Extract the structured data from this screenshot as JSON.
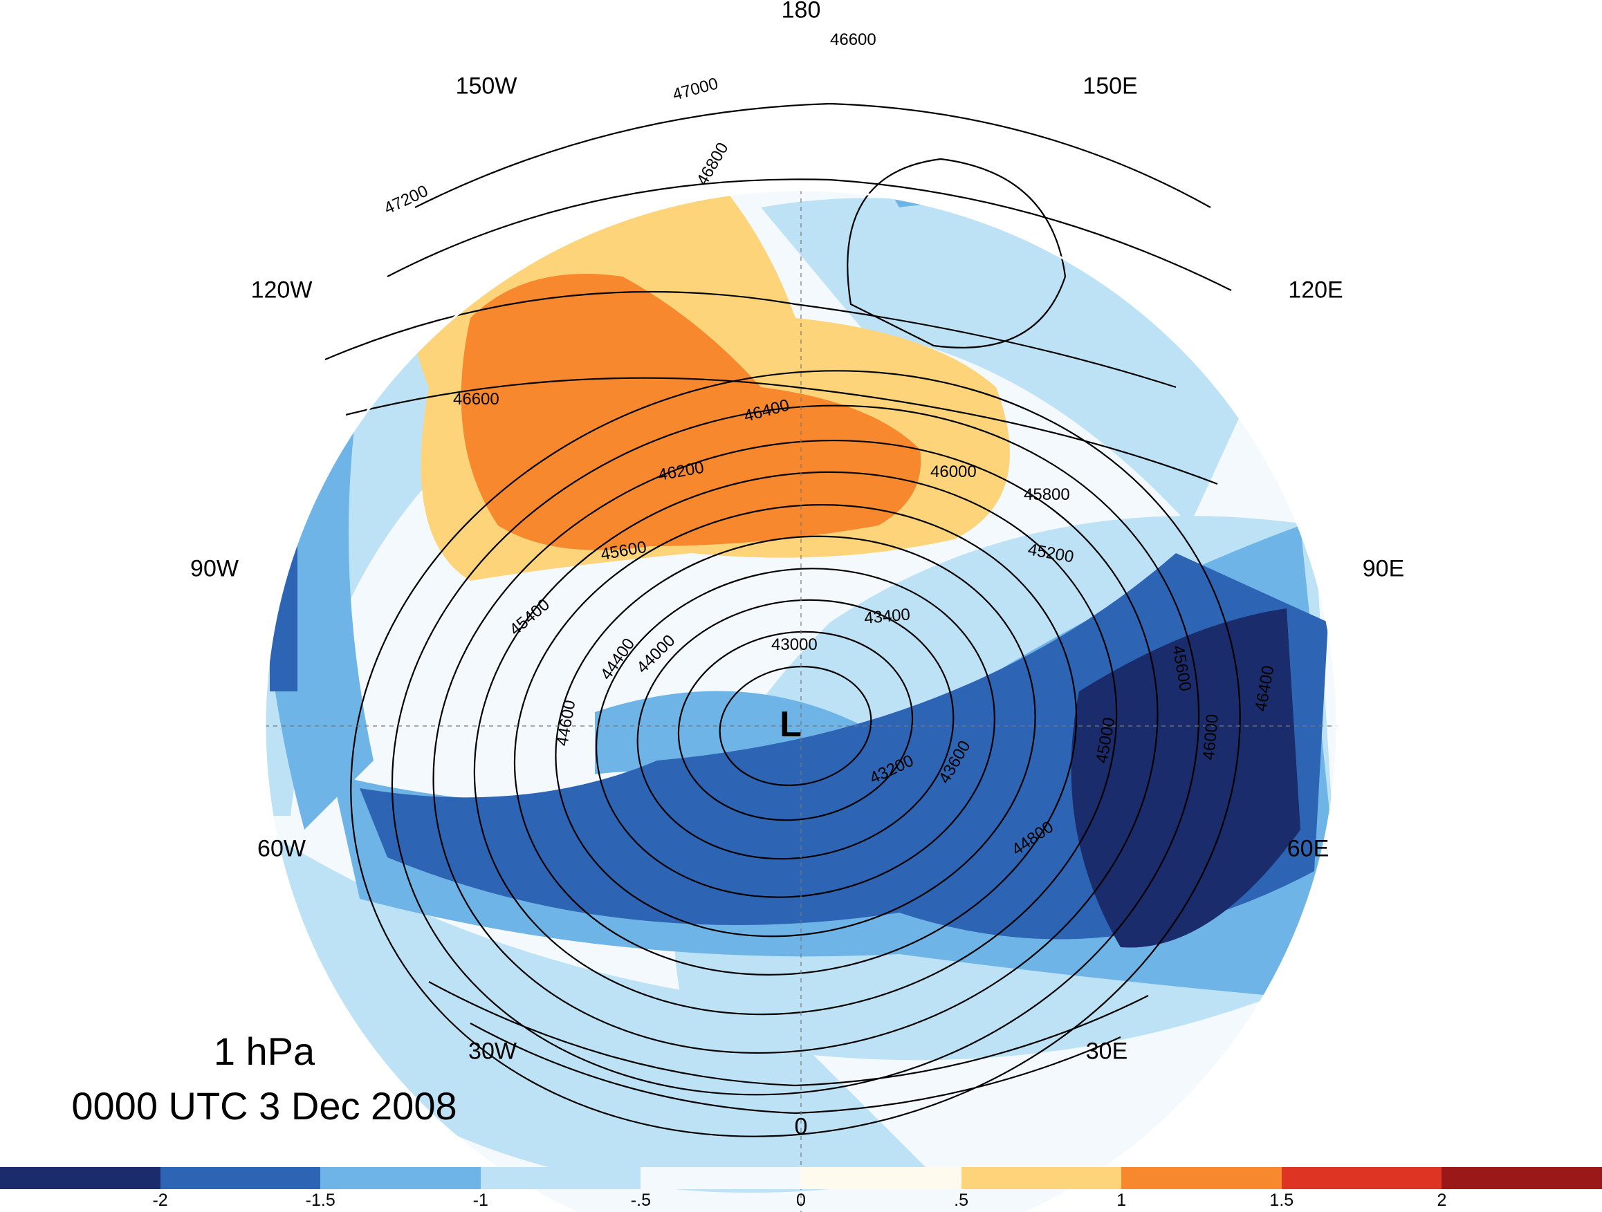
{
  "title": {
    "level": "1 hPa",
    "time": "0000 UTC 3 Dec 2008"
  },
  "center_marker": "L",
  "longitude_labels": {
    "lon_180": "180",
    "lon_150w": "150W",
    "lon_150e": "150E",
    "lon_120w": "120W",
    "lon_120e": "120E",
    "lon_90w": "90W",
    "lon_90e": "90E",
    "lon_60w": "60W",
    "lon_60e": "60E",
    "lon_30w": "30W",
    "lon_30e": "30E",
    "lon_0": "0"
  },
  "contour_labels": [
    "47000",
    "46800",
    "47200",
    "46600",
    "46400",
    "46200",
    "46000",
    "45800",
    "45600",
    "45400",
    "45200",
    "44600",
    "44400",
    "44000",
    "43600",
    "43400",
    "43200",
    "43000",
    "46600",
    "45000",
    "44800",
    "45600",
    "46000",
    "46400"
  ],
  "colorbar": {
    "colors": [
      "#1a2c6b",
      "#2d64b3",
      "#6fb4e6",
      "#bde2f6",
      "#f4f9fd",
      "#fffaee",
      "#fdd47a",
      "#f7882d",
      "#de3423",
      "#9b1818"
    ],
    "ticks": [
      "-2",
      "-1.5",
      "-1",
      "-.5",
      "0",
      ".5",
      "1",
      "1.5",
      "2"
    ]
  }
}
